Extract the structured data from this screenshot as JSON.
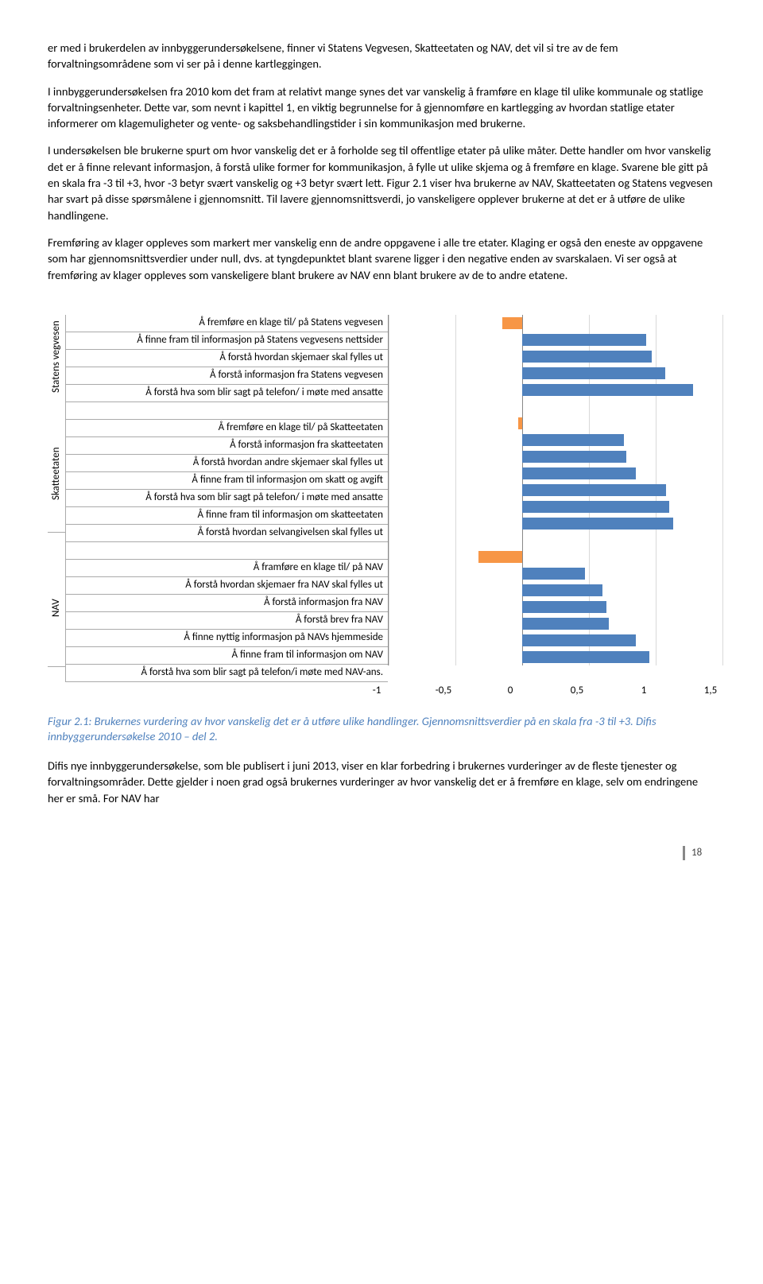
{
  "para1": "er med i brukerdelen av innbyggerundersøkelsene, finner vi Statens Vegvesen, Skatteetaten og NAV, det vil si tre av de fem forvaltningsområdene som vi ser på i denne kartleggingen.",
  "para2": "I innbyggerundersøkelsen fra 2010 kom det fram at relativt mange synes det var vanskelig å framføre en klage til ulike kommunale og statlige forvaltningsenheter. Dette var, som nevnt i kapittel 1, en viktig begrunnelse for å gjennomføre en kartlegging av hvordan statlige etater informerer om klagemuligheter og vente- og saksbehandlingstider i sin kommunikasjon med brukerne.",
  "para3": "I undersøkelsen ble brukerne spurt om hvor vanskelig det er å forholde seg til offentlige etater på ulike måter. Dette handler om hvor vanskelig det er å finne relevant informasjon, å forstå ulike former for kommunikasjon, å fylle ut ulike skjema og å fremføre en klage. Svarene ble gitt på en skala fra -3 til +3, hvor -3 betyr svært vanskelig og +3 betyr svært lett.  Figur 2.1 viser hva brukerne av NAV, Skatteetaten og Statens vegvesen har svart på disse spørsmålene i gjennomsnitt. Til lavere gjennomsnittsverdi, jo vanskeligere opplever brukerne at det er å utføre de ulike handlingene.",
  "para4": "Fremføring av klager oppleves som markert mer vanskelig enn de andre oppgavene i alle tre etater. Klaging er også den eneste av oppgavene som har gjennomsnittsverdier under null, dvs. at tyngdepunktet blant svarene ligger i den negative enden av svarskalaen. Vi ser også at fremføring av klager oppleves som vanskeligere blant brukere av NAV enn blant brukere av de to andre etatene.",
  "caption": "Figur 2.1: Brukernes vurdering av hvor vanskelig det er å utføre ulike handlinger. Gjennomsnittsverdier på en skala fra -3 til +3. Difis innbyggerundersøkelse 2010 – del 2.",
  "para5": "Difis nye innbyggerundersøkelse, som ble publisert i juni 2013, viser en klar forbedring i brukernes vurderinger av de fleste tjenester og forvaltningsområder. Dette gjelder i noen grad også brukernes vurderinger av hvor vanskelig det er å fremføre en klage, selv om endringene her er små. For NAV har",
  "pagenum": "18",
  "chart": {
    "type": "bar",
    "xlim": [
      -1,
      1.5
    ],
    "xticks": [
      -1,
      -0.5,
      0,
      0.5,
      1,
      1.5
    ],
    "xtick_labels": [
      "-1",
      "-0,5",
      "0",
      "0,5",
      "1",
      "1,5"
    ],
    "bar_color_pos": "#4f81bd",
    "bar_color_neg": "#f79646",
    "grid_color": "#d9d9d9",
    "label_fontsize": 13,
    "groups": [
      {
        "name": "Statens vegvesen",
        "rows": [
          {
            "label": "Å fremføre en klage til/ på Statens vegvesen",
            "value": -0.15
          },
          {
            "label": "Å finne fram til informasjon på Statens vegvesens nettsider",
            "value": 0.93
          },
          {
            "label": "Å forstå hvordan skjemaer skal fylles ut",
            "value": 0.97
          },
          {
            "label": "Å forstå informasjon fra Statens vegvesen",
            "value": 1.07
          },
          {
            "label": "Å forstå hva som blir sagt på telefon/ i møte med ansatte",
            "value": 1.28
          }
        ]
      },
      {
        "name": "Skatteetaten",
        "rows": [
          {
            "label": "Å fremføre en klage til/ på Skatteetaten",
            "value": -0.03
          },
          {
            "label": "Å forstå informasjon fra skatteetaten",
            "value": 0.76
          },
          {
            "label": "Å forstå hvordan andre skjemaer skal fylles ut",
            "value": 0.78
          },
          {
            "label": "Å finne fram til informasjon om skatt og avgift",
            "value": 0.85
          },
          {
            "label": "Å forstå hva som blir sagt på telefon/ i møte med ansatte",
            "value": 1.08
          },
          {
            "label": "Å finne fram til informasjon om skatteetaten",
            "value": 1.1
          },
          {
            "label": "Å forstå hvordan selvangivelsen skal fylles ut",
            "value": 1.13
          }
        ]
      },
      {
        "name": "NAV",
        "rows": [
          {
            "label": "Å framføre en klage til/ på NAV",
            "value": -0.33
          },
          {
            "label": "Å forstå hvordan skjemaer fra NAV skal fylles ut",
            "value": 0.47
          },
          {
            "label": "Å forstå informasjon fra NAV",
            "value": 0.6
          },
          {
            "label": "Å forstå brev fra NAV",
            "value": 0.63
          },
          {
            "label": "Å finne nyttig informasjon på NAVs hjemmeside",
            "value": 0.65
          },
          {
            "label": "Å finne fram til informasjon om NAV",
            "value": 0.85
          },
          {
            "label": "Å forstå hva som blir sagt på telefon/i møte med NAV-ans.",
            "value": 0.95
          }
        ]
      }
    ]
  }
}
